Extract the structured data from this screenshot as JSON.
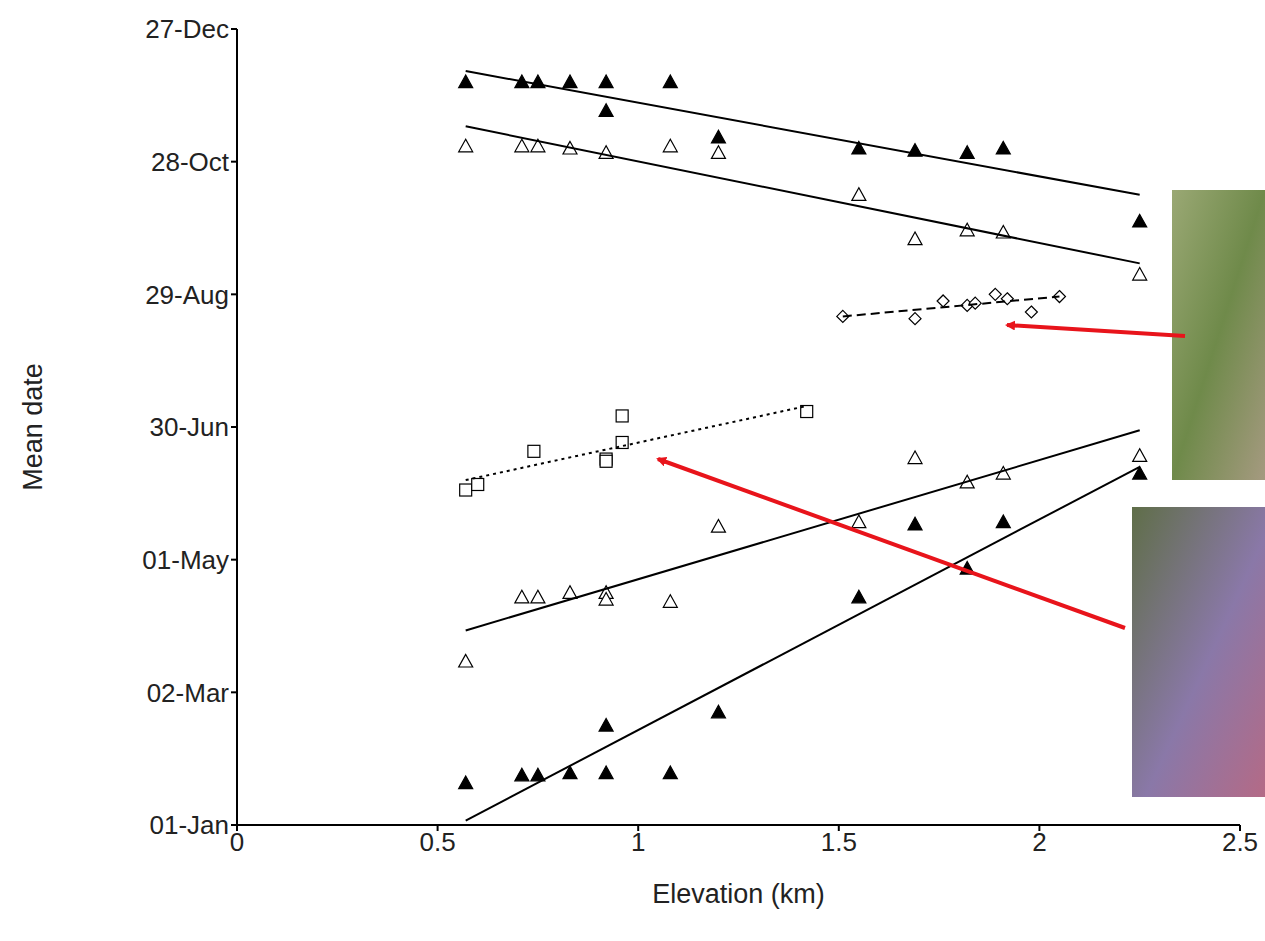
{
  "chart_data": {
    "type": "scatter",
    "x_label": "Elevation (km)",
    "y_label": "Mean date",
    "xlim": [
      0,
      2.5
    ],
    "xticks": [
      0,
      0.5,
      1,
      1.5,
      2,
      2.5
    ],
    "ylim": [
      1,
      361
    ],
    "yticks": [
      {
        "value": 1,
        "label": "01-Jan"
      },
      {
        "value": 61,
        "label": "02-Mar"
      },
      {
        "value": 121,
        "label": "01-May"
      },
      {
        "value": 181,
        "label": "30-Jun"
      },
      {
        "value": 241,
        "label": "29-Aug"
      },
      {
        "value": 301,
        "label": "28-Oct"
      },
      {
        "value": 361,
        "label": "27-Dec"
      }
    ],
    "grid": false,
    "tick_labels": true,
    "series": [
      {
        "type": "scatter",
        "marker": "triangle-filled",
        "color": "#000000",
        "x": [
          0.57,
          0.71,
          0.75,
          0.83,
          0.92,
          0.92,
          1.08,
          1.2,
          1.55,
          1.69,
          1.82,
          1.91,
          2.25
        ],
        "values": [
          337,
          337,
          337,
          337,
          337,
          324,
          337,
          312,
          307,
          306,
          305,
          307,
          274
        ]
      },
      {
        "type": "line",
        "line_style": "solid",
        "color": "#000000",
        "x": [
          0.57,
          2.25
        ],
        "values": [
          342,
          286
        ]
      },
      {
        "type": "scatter",
        "marker": "triangle-open",
        "color": "#000000",
        "x": [
          0.57,
          0.71,
          0.75,
          0.83,
          0.92,
          1.08,
          1.2,
          1.55,
          1.69,
          1.82,
          1.91,
          2.25
        ],
        "values": [
          308,
          308,
          308,
          307,
          305,
          308,
          305,
          286,
          266,
          270,
          269,
          250
        ]
      },
      {
        "type": "line",
        "line_style": "solid",
        "color": "#000000",
        "x": [
          0.57,
          2.25
        ],
        "values": [
          317,
          255
        ]
      },
      {
        "type": "scatter",
        "marker": "diamond-open",
        "color": "#000000",
        "x": [
          1.51,
          1.69,
          1.76,
          1.82,
          1.84,
          1.89,
          1.92,
          1.98,
          2.05
        ],
        "values": [
          231,
          230,
          238,
          236,
          237,
          241,
          239,
          233,
          240
        ]
      },
      {
        "type": "line",
        "line_style": "dashed",
        "color": "#000000",
        "x": [
          1.51,
          2.05
        ],
        "values": [
          231,
          240
        ]
      },
      {
        "type": "scatter",
        "marker": "square-open",
        "color": "#000000",
        "x": [
          0.57,
          0.6,
          0.74,
          0.92,
          0.92,
          0.96,
          0.96,
          1.42
        ],
        "values": [
          152.5,
          155,
          170,
          166.5,
          165.5,
          186,
          174,
          188
        ]
      },
      {
        "type": "line",
        "line_style": "dotted",
        "color": "#000000",
        "x": [
          0.57,
          1.42
        ],
        "values": [
          157,
          190.5
        ]
      },
      {
        "type": "scatter",
        "marker": "triangle-open",
        "color": "#000000",
        "x": [
          0.57,
          0.71,
          0.75,
          0.83,
          0.92,
          0.92,
          1.08,
          1.2,
          1.55,
          1.69,
          1.82,
          1.91,
          2.25
        ],
        "values": [
          75,
          104,
          104,
          106,
          106,
          103,
          102,
          136,
          138,
          167,
          156,
          160,
          168
        ]
      },
      {
        "type": "line",
        "line_style": "solid",
        "color": "#000000",
        "x": [
          0.57,
          2.25
        ],
        "values": [
          89,
          179.5
        ]
      },
      {
        "type": "scatter",
        "marker": "triangle-filled",
        "color": "#000000",
        "x": [
          0.57,
          0.71,
          0.75,
          0.83,
          0.92,
          0.92,
          1.08,
          1.2,
          1.55,
          1.69,
          1.82,
          1.91,
          2.25
        ],
        "values": [
          20,
          23.5,
          23.5,
          24.5,
          24.5,
          46,
          24.5,
          52,
          104,
          137,
          117,
          138,
          160
        ]
      },
      {
        "type": "line",
        "line_style": "solid",
        "color": "#000000",
        "x": [
          0.57,
          2.25
        ],
        "values": [
          3,
          163
        ]
      }
    ]
  }
}
